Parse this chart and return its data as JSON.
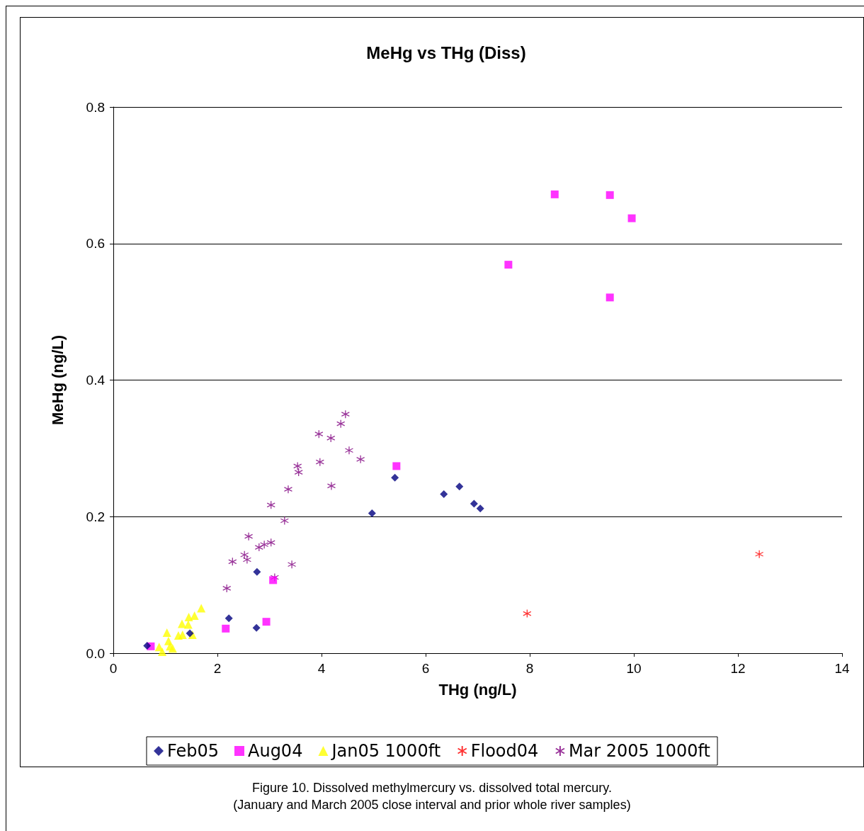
{
  "chart_data": {
    "type": "scatter",
    "title": "MeHg vs THg (Diss)",
    "xlabel": "THg (ng/L)",
    "ylabel": "MeHg (ng/L)",
    "xlim": [
      0,
      14
    ],
    "xticks": [
      0,
      2,
      4,
      6,
      8,
      10,
      12,
      14
    ],
    "ylim": [
      0,
      0.8
    ],
    "yticks": [
      {
        "value": 0,
        "label": "0.0"
      },
      {
        "value": 0.2,
        "label": "0.2"
      },
      {
        "value": 0.4,
        "label": "0.4"
      },
      {
        "value": 0.6,
        "label": "0.6"
      },
      {
        "value": 0.8,
        "label": "0.8"
      }
    ],
    "grid": "y",
    "legend": "bottom",
    "annotations": [
      "Figure 10. Dissolved methylmercury vs. dissolved total mercury.",
      "(January and March 2005 close interval and prior whole river samples)"
    ],
    "series": [
      {
        "name": "Feb05",
        "color": "#000080",
        "marker": "diamond",
        "x": [
          0.65,
          2.22,
          2.76,
          2.75,
          4.97,
          5.41,
          6.35,
          6.65,
          6.93,
          7.05,
          1.47
        ],
        "values": [
          0.011,
          0.051,
          0.119,
          0.037,
          0.205,
          0.257,
          0.233,
          0.244,
          0.219,
          0.212,
          0.029
        ]
      },
      {
        "name": "Aug04",
        "color": "#ff00ff",
        "marker": "square",
        "x": [
          0.72,
          2.16,
          2.94,
          3.07,
          5.44,
          7.59,
          8.48,
          9.54,
          9.96,
          9.54
        ],
        "values": [
          0.01,
          0.036,
          0.046,
          0.107,
          0.274,
          0.569,
          0.672,
          0.671,
          0.637,
          0.521
        ]
      },
      {
        "name": "Jan05 1000ft",
        "color": "#ffff00",
        "marker": "triangle",
        "x": [
          1.03,
          0.94,
          0.88,
          1.06,
          1.14,
          1.25,
          1.33,
          1.32,
          1.44,
          1.45,
          1.56,
          1.69,
          1.52,
          1.09
        ],
        "values": [
          0.03,
          0.002,
          0.009,
          0.018,
          0.007,
          0.026,
          0.027,
          0.043,
          0.042,
          0.053,
          0.055,
          0.066,
          0.027,
          0.01
        ]
      },
      {
        "name": "Flood04",
        "color": "#ff0000",
        "marker": "cross",
        "x": [
          7.95,
          12.41
        ],
        "values": [
          0.058,
          0.145
        ]
      },
      {
        "name": "Mar 2005 1000ft",
        "color": "#800080",
        "marker": "cross",
        "x": [
          4.46,
          4.37,
          3.95,
          4.18,
          4.53,
          4.75,
          3.97,
          3.54,
          3.56,
          4.19,
          3.36,
          3.03,
          3.29,
          2.6,
          2.8,
          2.9,
          3.03,
          2.52,
          2.57,
          2.29,
          3.43,
          3.1,
          2.18
        ],
        "values": [
          0.35,
          0.336,
          0.321,
          0.315,
          0.297,
          0.284,
          0.28,
          0.274,
          0.265,
          0.245,
          0.24,
          0.217,
          0.194,
          0.171,
          0.155,
          0.159,
          0.162,
          0.144,
          0.137,
          0.134,
          0.13,
          0.111,
          0.095
        ]
      }
    ]
  }
}
